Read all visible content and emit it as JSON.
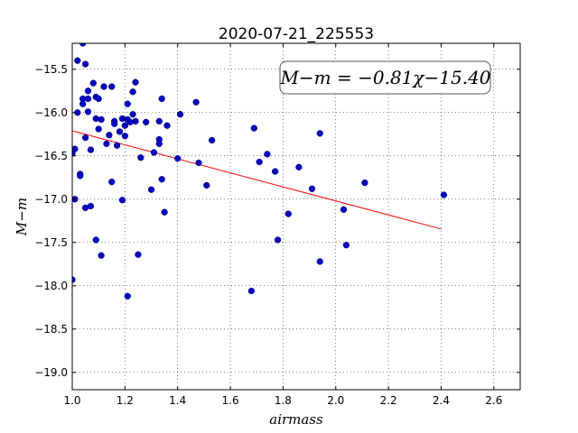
{
  "chart_data": {
    "type": "scatter",
    "title": "2020-07-21_225553",
    "xlabel": "airmass",
    "ylabel": "M−m",
    "annotation": "M−m = −0.81χ−15.40",
    "xlim": [
      1.0,
      2.7
    ],
    "ylim": [
      -19.2,
      -15.2
    ],
    "y_inverted": true,
    "grid": true,
    "x_ticks": [
      1.0,
      1.2,
      1.4,
      1.6,
      1.8,
      2.0,
      2.2,
      2.4,
      2.6
    ],
    "x_tick_labels": [
      "1.0",
      "1.2",
      "1.4",
      "1.6",
      "1.8",
      "2.0",
      "2.2",
      "2.4",
      "2.6"
    ],
    "y_ticks": [
      -15.5,
      -16.0,
      -16.5,
      -17.0,
      -17.5,
      -18.0,
      -18.5,
      -19.0
    ],
    "y_tick_labels": [
      "−15.5",
      "−16.0",
      "−16.5",
      "−17.0",
      "−17.5",
      "−18.0",
      "−18.5",
      "−19.0"
    ],
    "colors": {
      "points": "#0000bf",
      "fit": "#ff0000"
    },
    "points": [
      [
        1.0,
        -17.93
      ],
      [
        1.0,
        -16.47
      ],
      [
        1.01,
        -16.42
      ],
      [
        1.01,
        -17.0
      ],
      [
        1.02,
        -15.4
      ],
      [
        1.02,
        -16.0
      ],
      [
        1.03,
        -16.71
      ],
      [
        1.03,
        -16.73
      ],
      [
        1.04,
        -15.2
      ],
      [
        1.04,
        -15.84
      ],
      [
        1.04,
        -15.9
      ],
      [
        1.05,
        -15.44
      ],
      [
        1.05,
        -16.29
      ],
      [
        1.05,
        -17.1
      ],
      [
        1.06,
        -15.84
      ],
      [
        1.06,
        -15.99
      ],
      [
        1.06,
        -15.75
      ],
      [
        1.07,
        -16.43
      ],
      [
        1.07,
        -17.08
      ],
      [
        1.08,
        -15.66
      ],
      [
        1.09,
        -15.82
      ],
      [
        1.09,
        -16.07
      ],
      [
        1.09,
        -17.47
      ],
      [
        1.1,
        -16.19
      ],
      [
        1.1,
        -15.84
      ],
      [
        1.11,
        -16.08
      ],
      [
        1.11,
        -17.65
      ],
      [
        1.12,
        -15.7
      ],
      [
        1.13,
        -16.36
      ],
      [
        1.14,
        -16.26
      ],
      [
        1.15,
        -15.7
      ],
      [
        1.15,
        -16.8
      ],
      [
        1.16,
        -16.1
      ],
      [
        1.16,
        -16.13
      ],
      [
        1.17,
        -16.38
      ],
      [
        1.18,
        -16.22
      ],
      [
        1.19,
        -16.07
      ],
      [
        1.19,
        -17.01
      ],
      [
        1.2,
        -16.27
      ],
      [
        1.2,
        -16.15
      ],
      [
        1.21,
        -15.9
      ],
      [
        1.21,
        -16.08
      ],
      [
        1.21,
        -18.12
      ],
      [
        1.22,
        -16.11
      ],
      [
        1.23,
        -16.02
      ],
      [
        1.23,
        -15.76
      ],
      [
        1.24,
        -15.65
      ],
      [
        1.24,
        -16.1
      ],
      [
        1.25,
        -17.64
      ],
      [
        1.26,
        -16.52
      ],
      [
        1.28,
        -16.11
      ],
      [
        1.3,
        -16.89
      ],
      [
        1.31,
        -16.46
      ],
      [
        1.33,
        -16.1
      ],
      [
        1.33,
        -16.31
      ],
      [
        1.33,
        -16.36
      ],
      [
        1.34,
        -15.84
      ],
      [
        1.34,
        -16.77
      ],
      [
        1.35,
        -17.15
      ],
      [
        1.36,
        -16.15
      ],
      [
        1.4,
        -16.53
      ],
      [
        1.41,
        -16.02
      ],
      [
        1.47,
        -15.88
      ],
      [
        1.48,
        -16.58
      ],
      [
        1.51,
        -16.84
      ],
      [
        1.53,
        -16.32
      ],
      [
        1.68,
        -18.06
      ],
      [
        1.69,
        -16.18
      ],
      [
        1.71,
        -16.57
      ],
      [
        1.74,
        -16.48
      ],
      [
        1.77,
        -16.68
      ],
      [
        1.78,
        -17.47
      ],
      [
        1.82,
        -17.17
      ],
      [
        1.86,
        -16.63
      ],
      [
        1.91,
        -16.88
      ],
      [
        1.94,
        -16.24
      ],
      [
        1.94,
        -17.72
      ],
      [
        2.03,
        -17.12
      ],
      [
        2.04,
        -17.53
      ],
      [
        2.11,
        -16.81
      ],
      [
        2.41,
        -16.95
      ]
    ],
    "fit_line": {
      "slope": -0.81,
      "intercept": -15.4,
      "x_range": [
        1.0,
        2.4
      ]
    }
  }
}
